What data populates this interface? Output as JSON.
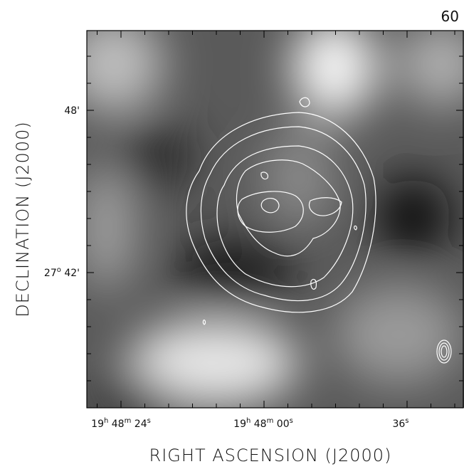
{
  "panel_label": "60",
  "x_axis": {
    "title": "RIGHT ASCENSION (J2000)",
    "ticks": [
      [
        "19",
        "h",
        " 48",
        "m",
        " 24",
        "s"
      ],
      [
        "19",
        "h",
        " 48",
        "m",
        " 00",
        "s"
      ],
      [
        "36",
        "s"
      ]
    ]
  },
  "y_axis": {
    "title": "DECLINATION (J2000)",
    "ticks": [
      [
        "48'"
      ],
      [
        "27",
        "o",
        " 42'"
      ]
    ]
  }
}
